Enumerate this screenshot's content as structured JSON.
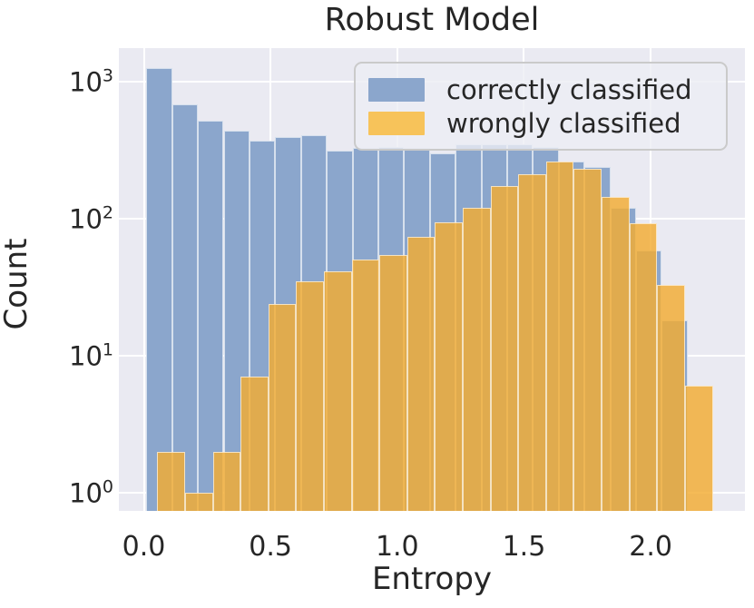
{
  "title": "Robust Model",
  "axes": {
    "x_label": "Entropy",
    "y_label": "Count",
    "x_ticks": [
      {
        "label": "0.0",
        "value": 0.0
      },
      {
        "label": "0.5",
        "value": 0.5
      },
      {
        "label": "1.0",
        "value": 1.0
      },
      {
        "label": "1.5",
        "value": 1.5
      },
      {
        "label": "2.0",
        "value": 2.0
      }
    ],
    "y_ticks": [
      {
        "base": "10",
        "exp": "0",
        "value": 1
      },
      {
        "base": "10",
        "exp": "1",
        "value": 10
      },
      {
        "base": "10",
        "exp": "2",
        "value": 100
      },
      {
        "base": "10",
        "exp": "3",
        "value": 1000
      }
    ],
    "y_scale": "log",
    "grid": true
  },
  "legend": {
    "items": [
      {
        "label": "correctly classified",
        "color": "#8ba6cc"
      },
      {
        "label": "wrongly classified",
        "color": "#f7c35a"
      }
    ]
  },
  "colors": {
    "plot_background": "#eaeaf2",
    "gridline": "#ffffff",
    "blue_bar": "#8ba6cc",
    "orange_bar": "rgba(243,172,50,0.82)",
    "text": "#262626"
  },
  "chart_data": {
    "type": "bar",
    "subtype": "histogram-overlay",
    "title": "Robust Model",
    "xlabel": "Entropy",
    "ylabel": "Count",
    "y_scale": "log",
    "ylim": [
      0.74,
      1760
    ],
    "xlim": [
      -0.098,
      2.372
    ],
    "legend_position": "upper right",
    "series": [
      {
        "name": "correctly classified",
        "color": "#8ba6cc",
        "bin_start": 0.01,
        "bin_width": 0.1017,
        "values": [
          1255,
          680,
          520,
          440,
          370,
          395,
          405,
          313,
          328,
          333,
          330,
          300,
          350,
          350,
          350,
          335,
          260,
          240,
          120,
          59,
          18
        ]
      },
      {
        "name": "wrongly classified",
        "color": "rgba(243,172,50,0.82)",
        "bin_start": 0.053,
        "bin_width": 0.1096,
        "values": [
          2,
          1,
          2,
          7,
          24,
          35,
          41,
          50,
          54,
          74,
          94,
          120,
          173,
          212,
          260,
          232,
          145,
          92,
          33,
          6
        ]
      }
    ]
  }
}
